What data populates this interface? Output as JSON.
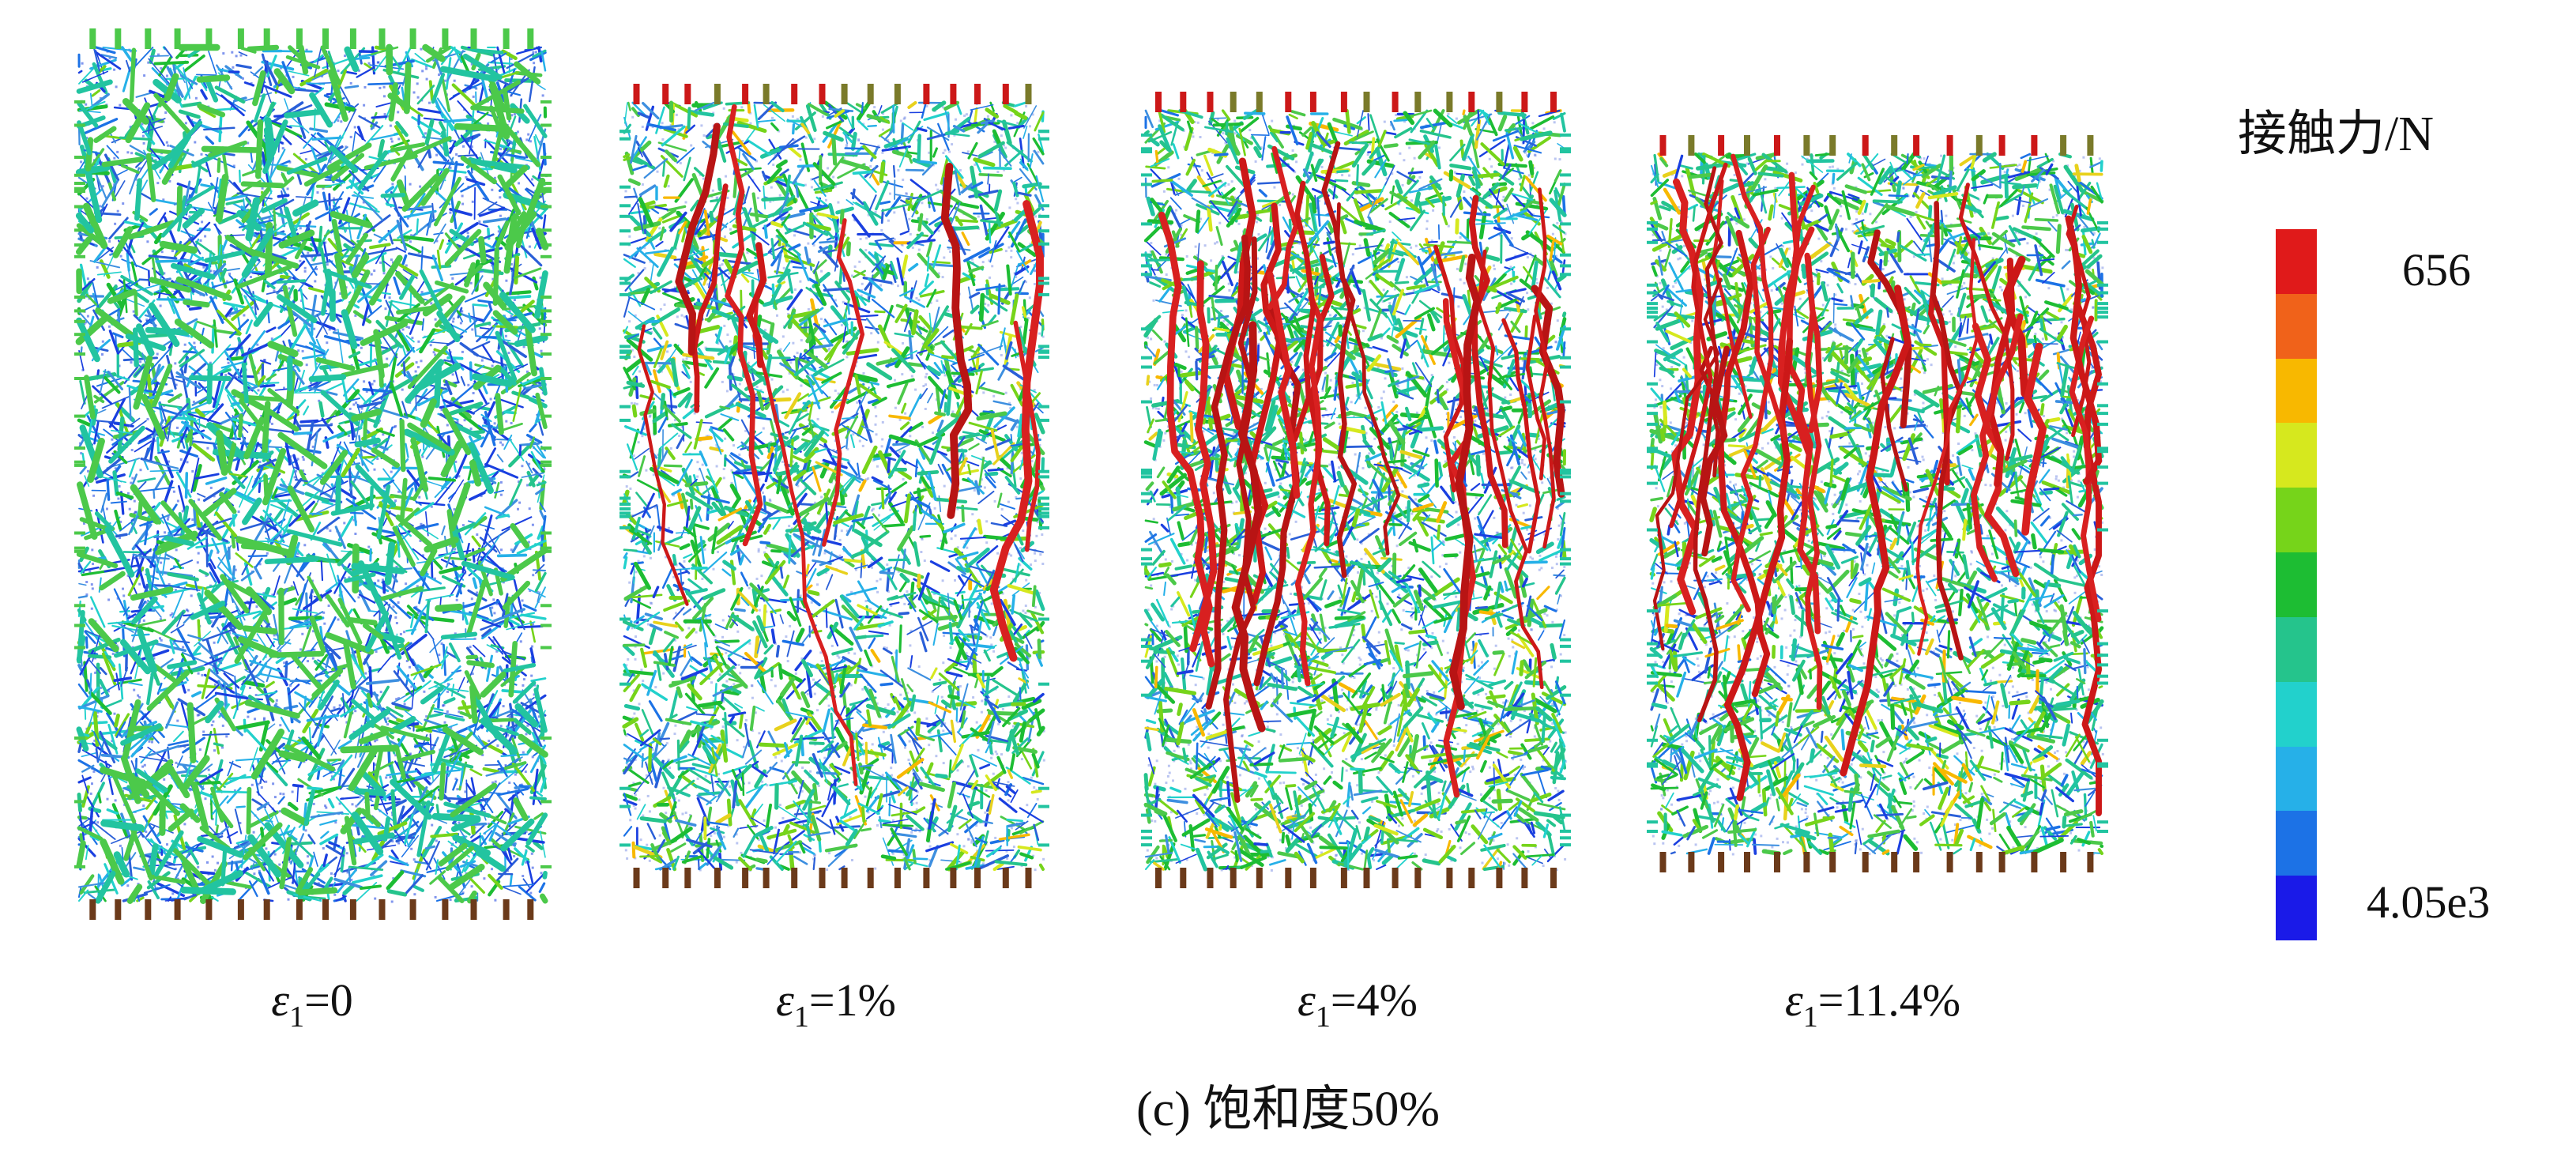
{
  "legend": {
    "title": "接触力/N",
    "max_label": "656",
    "min_label": "4.05e3",
    "colors": [
      "#e01a1a",
      "#f0621a",
      "#f8b800",
      "#d6e81e",
      "#76d41a",
      "#1dbd33",
      "#25c48c",
      "#22d1cc",
      "#26b0e8",
      "#1c72e6",
      "#1a1ae8"
    ]
  },
  "panels": [
    {
      "prefix": "ε",
      "sub": "1",
      "value": "=0",
      "red_fraction": 0.0,
      "green_fraction": 0.22
    },
    {
      "prefix": "ε",
      "sub": "1",
      "value": "=1%",
      "red_fraction": 0.05,
      "green_fraction": 0.45
    },
    {
      "prefix": "ε",
      "sub": "1",
      "value": "=4%",
      "red_fraction": 0.12,
      "green_fraction": 0.55
    },
    {
      "prefix": "ε",
      "sub": "1",
      "value": "=11.4%",
      "red_fraction": 0.16,
      "green_fraction": 0.55
    }
  ],
  "caption": "(c) 饱和度50%"
}
